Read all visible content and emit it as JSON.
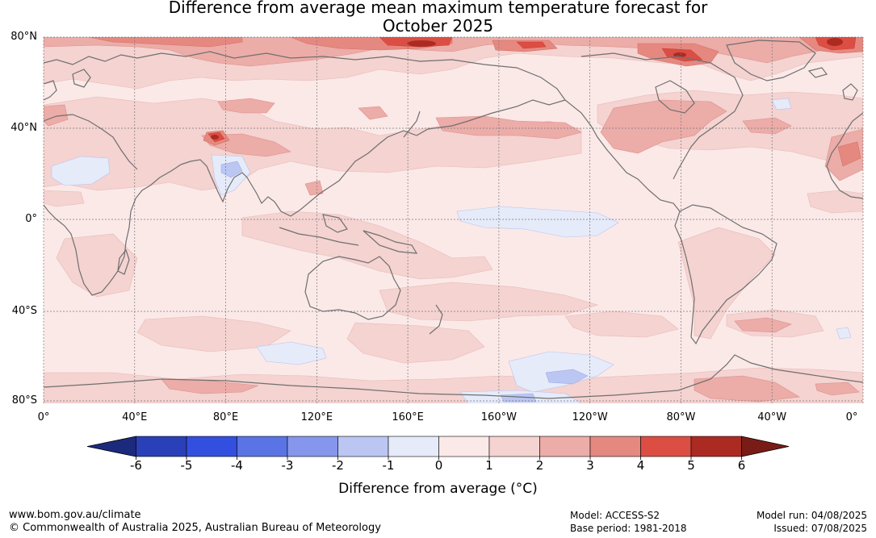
{
  "title_line1": "Difference from average mean maximum temperature forecast for",
  "title_line2": "October 2025",
  "lat_labels": [
    "80°N",
    "40°N",
    "0°",
    "40°S",
    "80°S"
  ],
  "lon_labels": [
    "0°",
    "40°E",
    "80°E",
    "120°E",
    "160°E",
    "160°W",
    "120°W",
    "80°W",
    "40°W",
    "0°"
  ],
  "colorbar": {
    "ticks": [
      "-6",
      "-5",
      "-4",
      "-3",
      "-2",
      "-1",
      "0",
      "1",
      "2",
      "3",
      "4",
      "5",
      "6"
    ],
    "colors": [
      "#1c2a7e",
      "#2a40b8",
      "#324fe0",
      "#5a74e6",
      "#8596ec",
      "#bcc6f3",
      "#e6ebfa",
      "#fbe9e8",
      "#f4d3d1",
      "#ecaca8",
      "#e58980",
      "#dc4e43",
      "#ab2b22",
      "#7a1c16"
    ],
    "label": "Difference from average (°C)"
  },
  "colors": {
    "land_outline": "#6f6f6f",
    "grid": "#777777"
  },
  "footer": {
    "url": "www.bom.gov.au/climate",
    "copyright": "© Commonwealth of Australia 2025, Australian Bureau of Meteorology",
    "model": "Model: ACCESS-S2",
    "base_period": "Base period: 1981-2018",
    "model_run": "Model run: 04/08/2025",
    "issued": "Issued: 07/08/2025"
  }
}
